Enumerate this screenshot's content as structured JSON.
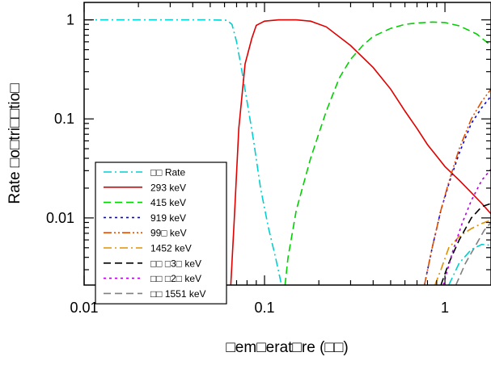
{
  "chart_data": {
    "type": "line",
    "title": "",
    "xlabel": "□em□erat□re (□□)",
    "ylabel": "Rate □o□tri□□tio□",
    "xscale": "log",
    "yscale": "log",
    "xlim": [
      0.01,
      1.8
    ],
    "ylim": [
      0.0021,
      1.5
    ],
    "x_ticks": [
      {
        "value": 0.01,
        "label": "0.01"
      },
      {
        "value": 0.1,
        "label": "0.1"
      },
      {
        "value": 1,
        "label": "1"
      }
    ],
    "y_ticks": [
      {
        "value": 1,
        "label": "1"
      },
      {
        "value": 0.1,
        "label": "0.1"
      },
      {
        "value": 0.01,
        "label": "0.01"
      }
    ],
    "grid": false,
    "legend_position": "bottom-left",
    "series": [
      {
        "name": "□□ Rate",
        "color": "#00d0d0",
        "dash": "dashdot",
        "points": [
          [
            0.01,
            1
          ],
          [
            0.05,
            1
          ],
          [
            0.062,
            0.99
          ],
          [
            0.066,
            0.9
          ],
          [
            0.07,
            0.6
          ],
          [
            0.075,
            0.3
          ],
          [
            0.08,
            0.15
          ],
          [
            0.087,
            0.06
          ],
          [
            0.095,
            0.02
          ],
          [
            0.105,
            0.008
          ],
          [
            0.115,
            0.004
          ],
          [
            0.125,
            0.002
          ]
        ]
      },
      {
        "name": "293 keV",
        "color": "#e00000",
        "dash": "solid",
        "points": [
          [
            0.065,
            0.0021
          ],
          [
            0.068,
            0.01
          ],
          [
            0.072,
            0.08
          ],
          [
            0.078,
            0.36
          ],
          [
            0.085,
            0.65
          ],
          [
            0.09,
            0.88
          ],
          [
            0.1,
            0.97
          ],
          [
            0.12,
            1
          ],
          [
            0.15,
            1
          ],
          [
            0.18,
            0.97
          ],
          [
            0.22,
            0.85
          ],
          [
            0.3,
            0.55
          ],
          [
            0.4,
            0.33
          ],
          [
            0.5,
            0.2
          ],
          [
            0.6,
            0.12
          ],
          [
            0.7,
            0.08
          ],
          [
            0.8,
            0.055
          ],
          [
            0.9,
            0.042
          ],
          [
            1.0,
            0.033
          ],
          [
            1.2,
            0.024
          ],
          [
            1.4,
            0.018
          ],
          [
            1.6,
            0.014
          ],
          [
            1.8,
            0.011
          ]
        ]
      },
      {
        "name": "415 keV",
        "color": "#00d000",
        "dash": "dash",
        "points": [
          [
            0.13,
            0.0021
          ],
          [
            0.135,
            0.004
          ],
          [
            0.15,
            0.012
          ],
          [
            0.18,
            0.04
          ],
          [
            0.22,
            0.12
          ],
          [
            0.26,
            0.26
          ],
          [
            0.3,
            0.4
          ],
          [
            0.35,
            0.55
          ],
          [
            0.4,
            0.68
          ],
          [
            0.5,
            0.82
          ],
          [
            0.6,
            0.9
          ],
          [
            0.7,
            0.93
          ],
          [
            0.85,
            0.95
          ],
          [
            1.0,
            0.94
          ],
          [
            1.2,
            0.87
          ],
          [
            1.5,
            0.72
          ],
          [
            1.8,
            0.55
          ]
        ]
      },
      {
        "name": "919 keV",
        "color": "#0000e0",
        "dash": "dot",
        "points": [
          [
            0.77,
            0.0021
          ],
          [
            0.85,
            0.005
          ],
          [
            0.95,
            0.012
          ],
          [
            1.05,
            0.022
          ],
          [
            1.2,
            0.045
          ],
          [
            1.4,
            0.09
          ],
          [
            1.6,
            0.13
          ],
          [
            1.8,
            0.17
          ]
        ]
      },
      {
        "name": "99□ keV",
        "color": "#e05000",
        "dash": "dashdotdot",
        "points": [
          [
            0.77,
            0.0021
          ],
          [
            0.85,
            0.005
          ],
          [
            0.95,
            0.012
          ],
          [
            1.05,
            0.023
          ],
          [
            1.2,
            0.05
          ],
          [
            1.4,
            0.1
          ],
          [
            1.6,
            0.15
          ],
          [
            1.8,
            0.2
          ]
        ]
      },
      {
        "name": "1452 keV",
        "color": "#e09000",
        "dash": "dashdot",
        "points": [
          [
            0.88,
            0.0021
          ],
          [
            0.95,
            0.003
          ],
          [
            1.05,
            0.005
          ],
          [
            1.2,
            0.0065
          ],
          [
            1.4,
            0.0078
          ],
          [
            1.6,
            0.0088
          ],
          [
            1.8,
            0.0095
          ]
        ]
      },
      {
        "name": "□□ □3□ keV",
        "color": "#000000",
        "dash": "dash",
        "points": [
          [
            0.95,
            0.0021
          ],
          [
            1.05,
            0.0035
          ],
          [
            1.2,
            0.006
          ],
          [
            1.4,
            0.01
          ],
          [
            1.6,
            0.013
          ],
          [
            1.8,
            0.014
          ]
        ]
      },
      {
        "name": "□□ □2□ keV",
        "color": "#b000e0",
        "dash": "dot",
        "points": [
          [
            0.98,
            0.0021
          ],
          [
            1.1,
            0.0045
          ],
          [
            1.25,
            0.009
          ],
          [
            1.4,
            0.015
          ],
          [
            1.6,
            0.024
          ],
          [
            1.8,
            0.031
          ]
        ]
      },
      {
        "name": "□□ 1551 keV",
        "color": "#808080",
        "dash": "dash",
        "points": [
          [
            1.15,
            0.0021
          ],
          [
            1.3,
            0.0035
          ],
          [
            1.5,
            0.0055
          ],
          [
            1.65,
            0.0075
          ],
          [
            1.8,
            0.009
          ]
        ]
      },
      {
        "name": "",
        "color": "#00d0d0",
        "dash": "dashdot",
        "points": [
          [
            1.05,
            0.0021
          ],
          [
            1.2,
            0.0035
          ],
          [
            1.4,
            0.0048
          ],
          [
            1.6,
            0.0054
          ],
          [
            1.8,
            0.0053
          ]
        ]
      }
    ]
  }
}
